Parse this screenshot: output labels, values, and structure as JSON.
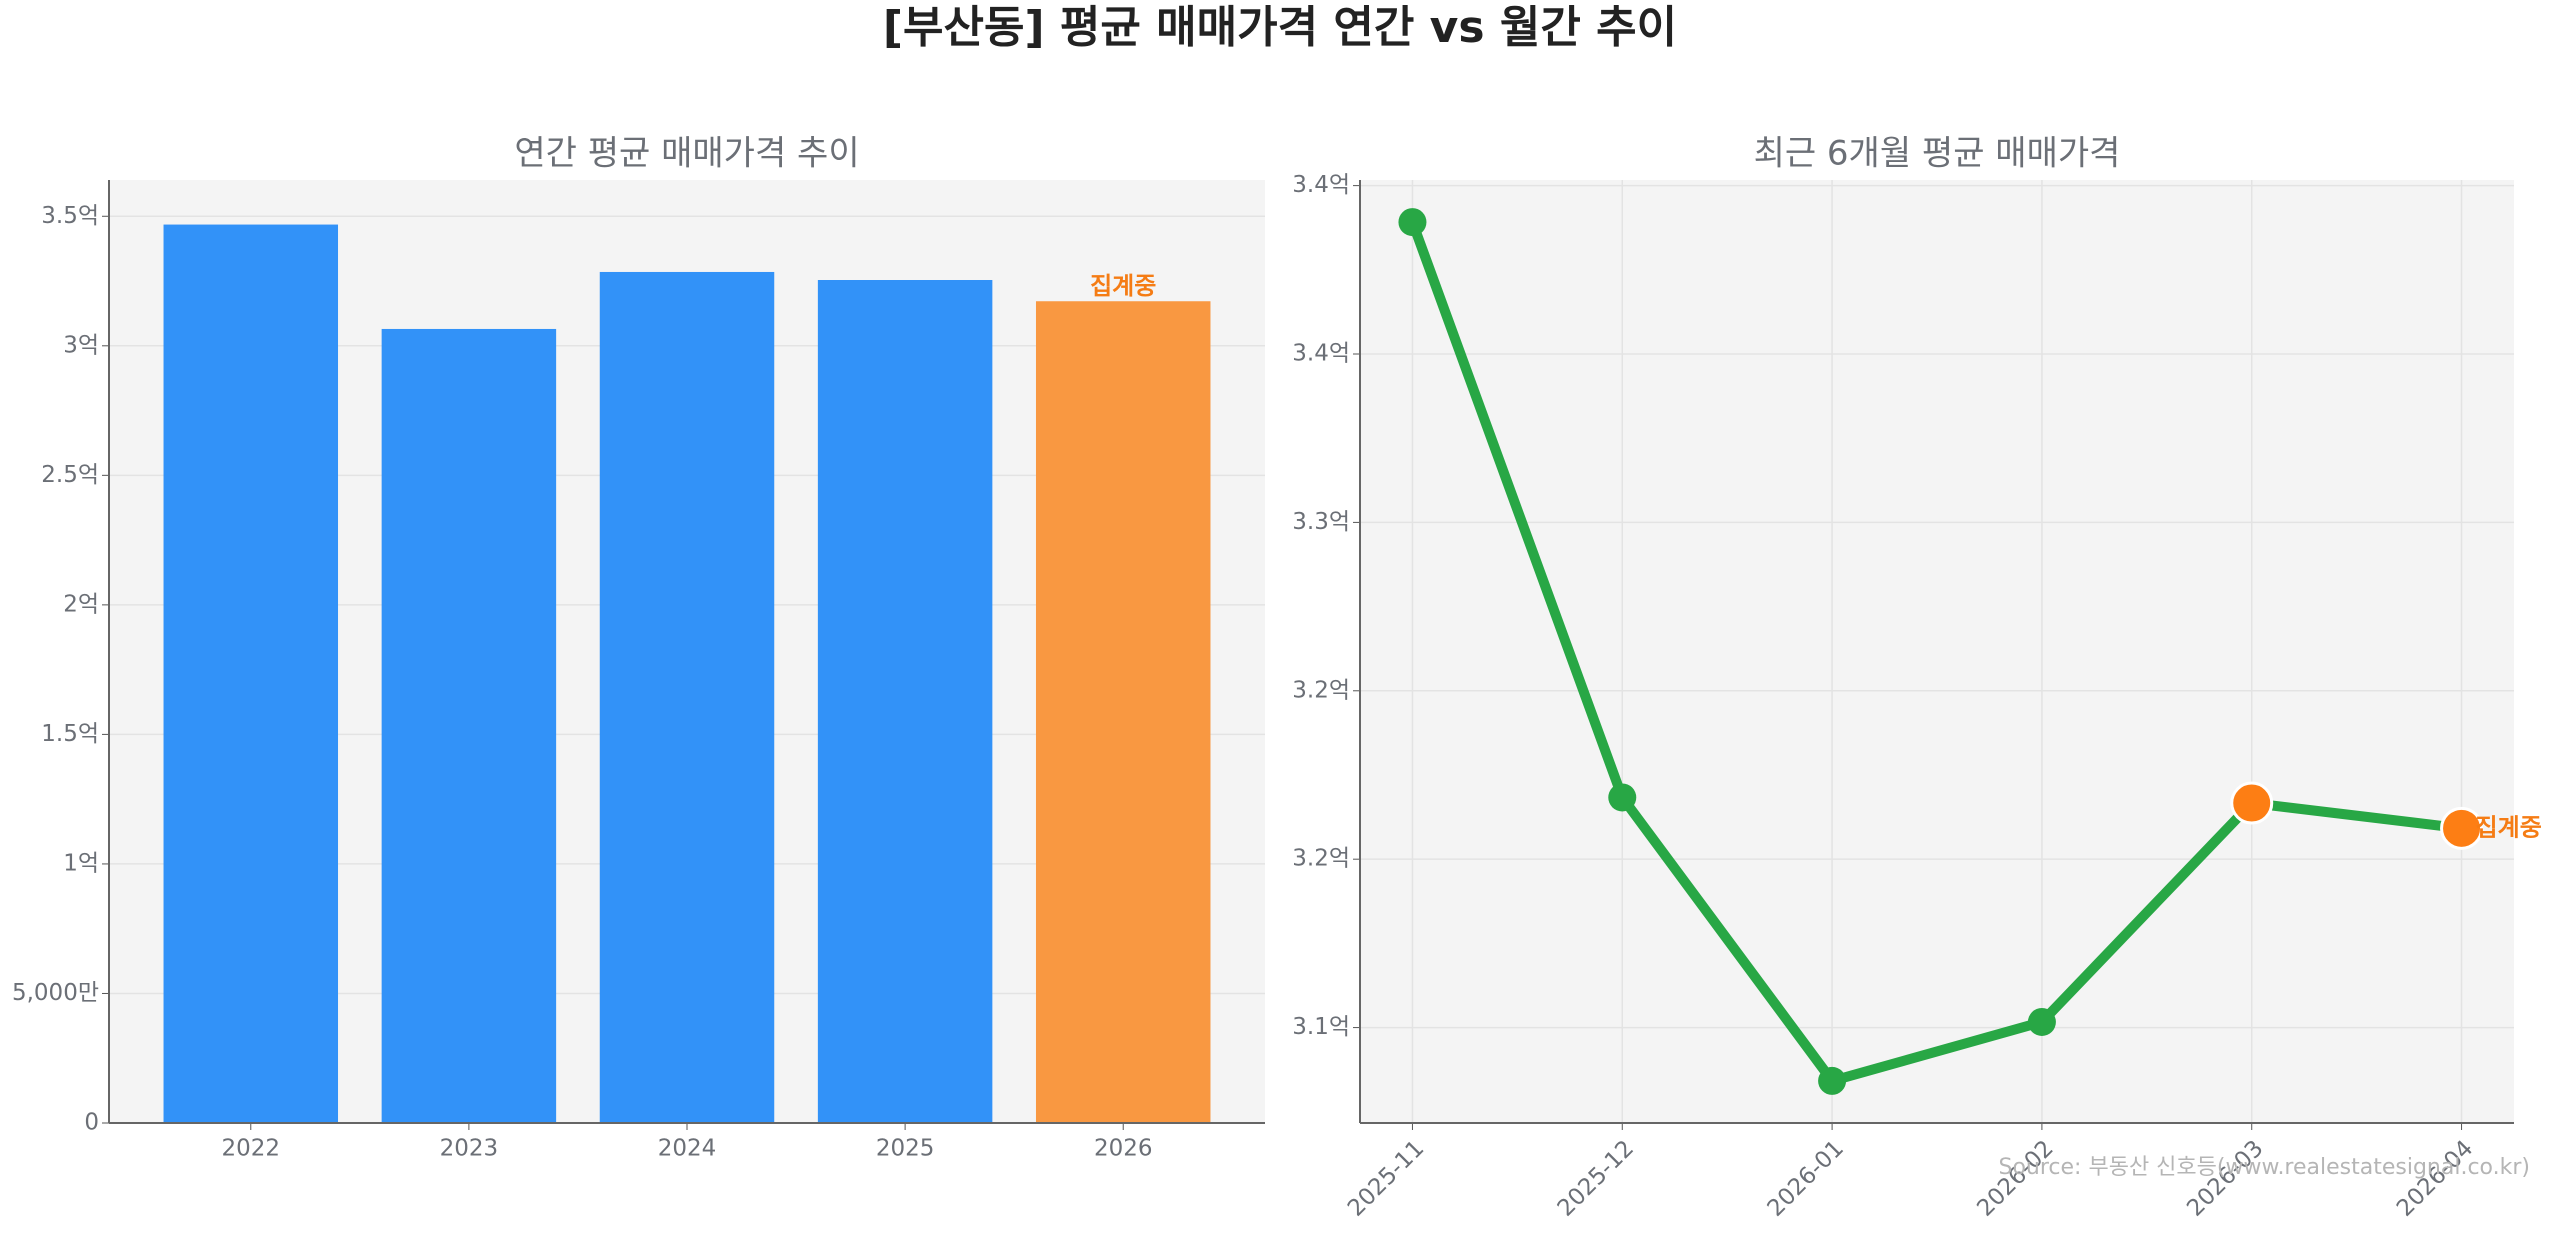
{
  "title": "[부산동] 평균 매매가격 연간 vs 월간 추이",
  "source": "Source: 부동산 신호등(www.realestatesignal.co.kr)",
  "chart_data": [
    {
      "type": "bar",
      "title": "연간 평균 매매가격 추이",
      "categories": [
        "2022",
        "2023",
        "2024",
        "2025",
        "2026"
      ],
      "values": [
        3.468,
        3.065,
        3.285,
        3.254,
        3.172
      ],
      "colors": [
        "#3292f8",
        "#3292f8",
        "#3292f8",
        "#3292f8",
        "#f99841"
      ],
      "annotation": "집계중",
      "annotation_color": "#f57c14",
      "ylim": [
        0,
        3.64
      ],
      "yticks": [
        0,
        {
          "value": 0.5,
          "label": "5,000만"
        },
        {
          "value": 1,
          "label": "1억"
        },
        {
          "value": 1.5,
          "label": "1.5억"
        },
        {
          "value": 2,
          "label": "2억"
        },
        {
          "value": 2.5,
          "label": "2.5억"
        },
        {
          "value": 3,
          "label": "3억"
        },
        {
          "value": 3.5,
          "label": "3.5억"
        }
      ],
      "grid": true
    },
    {
      "type": "line",
      "title": "최근 6개월 평균 매매가격",
      "categories": [
        "2025-11",
        "2025-12",
        "2026-01",
        "2026-02",
        "2026-03",
        "2026-04"
      ],
      "series": [
        {
          "color": "#28a745",
          "values": [
            3.407,
            3.202,
            3.101,
            3.122,
            3.2,
            3.191
          ],
          "marker_colors": [
            "#28a745",
            "#28a745",
            "#28a745",
            "#28a745",
            "#fd7e14",
            "#fd7e14"
          ]
        }
      ],
      "annotation": "집계중",
      "annotation_color": "#f57c14",
      "ylim": [
        3.086,
        3.422
      ],
      "yticks": [
        {
          "value": 3.12,
          "label": "3.1억"
        },
        {
          "value": 3.18,
          "label": "3.2억"
        },
        {
          "value": 3.24,
          "label": "3.2억"
        },
        {
          "value": 3.3,
          "label": "3.3억"
        },
        {
          "value": 3.36,
          "label": "3.4억"
        },
        {
          "value": 3.42,
          "label": "3.4억"
        }
      ],
      "grid": true
    }
  ]
}
